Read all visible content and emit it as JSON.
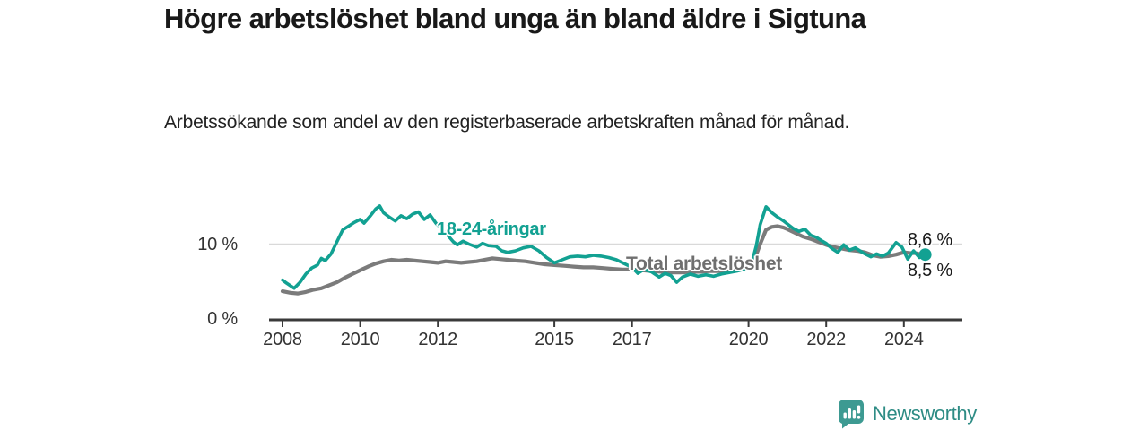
{
  "header": {
    "title": "Högre arbetslöshet bland unga än bland äldre i Sigtuna",
    "subtitle": "Arbetssökande som andel av den registerbaserade arbetskraften månad för månad."
  },
  "chart_data": {
    "type": "line",
    "title": "Högre arbetslöshet bland unga än bland äldre i Sigtuna",
    "subtitle": "Arbetssökande som andel av den registerbaserade arbetskraften månad för månad.",
    "xlabel": "",
    "ylabel": "%",
    "xlim": [
      2007.6,
      2025.3
    ],
    "ylim": [
      0,
      16
    ],
    "grid": "single horizontal gridline at 10 %",
    "legend_position": "inline labels on lines",
    "y_ticks": [
      {
        "label": "10 %",
        "value": 10
      },
      {
        "label": "0 %",
        "value": 0
      }
    ],
    "x_ticks": [
      {
        "label": "2008",
        "year": 2008
      },
      {
        "label": "2010",
        "year": 2010
      },
      {
        "label": "2012",
        "year": 2012
      },
      {
        "label": "2015",
        "year": 2015
      },
      {
        "label": "2017",
        "year": 2017
      },
      {
        "label": "2020",
        "year": 2020
      },
      {
        "label": "2022",
        "year": 2022
      },
      {
        "label": "2024",
        "year": 2024
      }
    ],
    "series": [
      {
        "name": "18-24-åringar",
        "color": "#12A192",
        "end_label": "8,6 %",
        "end_value": 8.6,
        "points": [
          [
            2008.0,
            5.2
          ],
          [
            2008.1,
            4.8
          ],
          [
            2008.3,
            4.1
          ],
          [
            2008.45,
            4.9
          ],
          [
            2008.6,
            6.0
          ],
          [
            2008.75,
            6.8
          ],
          [
            2008.9,
            7.2
          ],
          [
            2009.0,
            8.1
          ],
          [
            2009.1,
            7.8
          ],
          [
            2009.25,
            8.7
          ],
          [
            2009.4,
            10.3
          ],
          [
            2009.55,
            11.9
          ],
          [
            2009.7,
            12.4
          ],
          [
            2009.85,
            12.9
          ],
          [
            2010.0,
            13.3
          ],
          [
            2010.1,
            12.8
          ],
          [
            2010.25,
            13.7
          ],
          [
            2010.4,
            14.7
          ],
          [
            2010.5,
            15.1
          ],
          [
            2010.6,
            14.2
          ],
          [
            2010.75,
            13.6
          ],
          [
            2010.9,
            13.1
          ],
          [
            2011.05,
            13.8
          ],
          [
            2011.2,
            13.4
          ],
          [
            2011.35,
            14.0
          ],
          [
            2011.5,
            14.3
          ],
          [
            2011.65,
            13.3
          ],
          [
            2011.8,
            13.9
          ],
          [
            2011.95,
            12.8
          ],
          [
            2012.1,
            12.0
          ],
          [
            2012.25,
            11.2
          ],
          [
            2012.4,
            10.3
          ],
          [
            2012.5,
            9.9
          ],
          [
            2012.65,
            10.4
          ],
          [
            2012.8,
            10.0
          ],
          [
            2013.0,
            9.6
          ],
          [
            2013.15,
            10.1
          ],
          [
            2013.3,
            9.8
          ],
          [
            2013.5,
            9.7
          ],
          [
            2013.65,
            9.1
          ],
          [
            2013.8,
            8.9
          ],
          [
            2014.0,
            9.1
          ],
          [
            2014.2,
            9.5
          ],
          [
            2014.4,
            9.7
          ],
          [
            2014.6,
            9.1
          ],
          [
            2014.8,
            8.2
          ],
          [
            2015.0,
            7.5
          ],
          [
            2015.2,
            7.9
          ],
          [
            2015.4,
            8.3
          ],
          [
            2015.6,
            8.4
          ],
          [
            2015.8,
            8.3
          ],
          [
            2016.0,
            8.5
          ],
          [
            2016.2,
            8.4
          ],
          [
            2016.4,
            8.2
          ],
          [
            2016.6,
            7.9
          ],
          [
            2016.8,
            7.4
          ],
          [
            2017.0,
            6.9
          ],
          [
            2017.15,
            6.1
          ],
          [
            2017.3,
            6.6
          ],
          [
            2017.5,
            6.3
          ],
          [
            2017.7,
            5.6
          ],
          [
            2017.85,
            6.1
          ],
          [
            2018.0,
            5.8
          ],
          [
            2018.15,
            4.9
          ],
          [
            2018.3,
            5.6
          ],
          [
            2018.5,
            6.0
          ],
          [
            2018.7,
            5.7
          ],
          [
            2018.9,
            5.9
          ],
          [
            2019.1,
            5.7
          ],
          [
            2019.3,
            6.0
          ],
          [
            2019.5,
            6.2
          ],
          [
            2019.7,
            6.4
          ],
          [
            2019.85,
            6.6
          ],
          [
            2020.0,
            6.9
          ],
          [
            2020.1,
            7.8
          ],
          [
            2020.2,
            9.8
          ],
          [
            2020.3,
            12.6
          ],
          [
            2020.45,
            15.0
          ],
          [
            2020.6,
            14.2
          ],
          [
            2020.75,
            13.6
          ],
          [
            2020.9,
            13.1
          ],
          [
            2021.0,
            12.7
          ],
          [
            2021.15,
            12.1
          ],
          [
            2021.3,
            11.7
          ],
          [
            2021.45,
            12.0
          ],
          [
            2021.6,
            11.2
          ],
          [
            2021.75,
            10.9
          ],
          [
            2021.9,
            10.4
          ],
          [
            2022.0,
            10.1
          ],
          [
            2022.15,
            9.4
          ],
          [
            2022.3,
            8.9
          ],
          [
            2022.45,
            9.9
          ],
          [
            2022.6,
            9.2
          ],
          [
            2022.75,
            9.5
          ],
          [
            2022.9,
            9.0
          ],
          [
            2023.0,
            8.7
          ],
          [
            2023.15,
            8.3
          ],
          [
            2023.3,
            8.7
          ],
          [
            2023.45,
            8.4
          ],
          [
            2023.6,
            8.8
          ],
          [
            2023.8,
            10.2
          ],
          [
            2023.95,
            9.6
          ],
          [
            2024.1,
            8.0
          ],
          [
            2024.25,
            9.1
          ],
          [
            2024.4,
            8.2
          ],
          [
            2024.55,
            8.6
          ]
        ]
      },
      {
        "name": "Total arbetslöshet",
        "color": "#7B7B7B",
        "end_label": "8,5 %",
        "end_value": 8.5,
        "points": [
          [
            2008.0,
            3.7
          ],
          [
            2008.2,
            3.5
          ],
          [
            2008.4,
            3.4
          ],
          [
            2008.6,
            3.6
          ],
          [
            2008.8,
            3.9
          ],
          [
            2009.0,
            4.1
          ],
          [
            2009.2,
            4.5
          ],
          [
            2009.4,
            4.9
          ],
          [
            2009.6,
            5.5
          ],
          [
            2009.8,
            6.0
          ],
          [
            2010.0,
            6.5
          ],
          [
            2010.2,
            7.0
          ],
          [
            2010.4,
            7.4
          ],
          [
            2010.6,
            7.7
          ],
          [
            2010.8,
            7.9
          ],
          [
            2011.0,
            7.8
          ],
          [
            2011.2,
            7.9
          ],
          [
            2011.4,
            7.8
          ],
          [
            2011.6,
            7.7
          ],
          [
            2011.8,
            7.6
          ],
          [
            2012.0,
            7.5
          ],
          [
            2012.2,
            7.7
          ],
          [
            2012.4,
            7.6
          ],
          [
            2012.6,
            7.5
          ],
          [
            2012.8,
            7.6
          ],
          [
            2013.0,
            7.7
          ],
          [
            2013.2,
            7.9
          ],
          [
            2013.4,
            8.1
          ],
          [
            2013.6,
            8.0
          ],
          [
            2013.8,
            7.9
          ],
          [
            2014.0,
            7.8
          ],
          [
            2014.25,
            7.7
          ],
          [
            2014.5,
            7.5
          ],
          [
            2014.75,
            7.3
          ],
          [
            2015.0,
            7.2
          ],
          [
            2015.25,
            7.1
          ],
          [
            2015.5,
            7.0
          ],
          [
            2015.75,
            6.9
          ],
          [
            2016.0,
            6.9
          ],
          [
            2016.25,
            6.8
          ],
          [
            2016.5,
            6.7
          ],
          [
            2016.75,
            6.6
          ],
          [
            2017.0,
            6.6
          ],
          [
            2017.25,
            6.5
          ],
          [
            2017.5,
            6.4
          ],
          [
            2017.75,
            6.3
          ],
          [
            2018.0,
            6.2
          ],
          [
            2018.25,
            6.2
          ],
          [
            2018.5,
            6.3
          ],
          [
            2018.75,
            6.3
          ],
          [
            2019.0,
            6.4
          ],
          [
            2019.25,
            6.4
          ],
          [
            2019.5,
            6.5
          ],
          [
            2019.75,
            6.6
          ],
          [
            2020.0,
            6.9
          ],
          [
            2020.15,
            7.9
          ],
          [
            2020.3,
            10.0
          ],
          [
            2020.45,
            11.9
          ],
          [
            2020.6,
            12.3
          ],
          [
            2020.75,
            12.4
          ],
          [
            2020.9,
            12.2
          ],
          [
            2021.0,
            12.0
          ],
          [
            2021.2,
            11.5
          ],
          [
            2021.4,
            11.0
          ],
          [
            2021.6,
            10.7
          ],
          [
            2021.8,
            10.3
          ],
          [
            2022.0,
            9.9
          ],
          [
            2022.2,
            9.6
          ],
          [
            2022.4,
            9.4
          ],
          [
            2022.6,
            9.2
          ],
          [
            2022.8,
            9.1
          ],
          [
            2023.0,
            8.9
          ],
          [
            2023.2,
            8.5
          ],
          [
            2023.4,
            8.3
          ],
          [
            2023.6,
            8.4
          ],
          [
            2023.8,
            8.6
          ],
          [
            2024.0,
            8.9
          ],
          [
            2024.15,
            8.8
          ],
          [
            2024.3,
            8.8
          ],
          [
            2024.45,
            8.6
          ],
          [
            2024.55,
            8.5
          ]
        ]
      }
    ]
  },
  "footer": {
    "brand": "Newsworthy",
    "brand_color": "#2E8C85",
    "logo_color": "#3D9A92"
  }
}
